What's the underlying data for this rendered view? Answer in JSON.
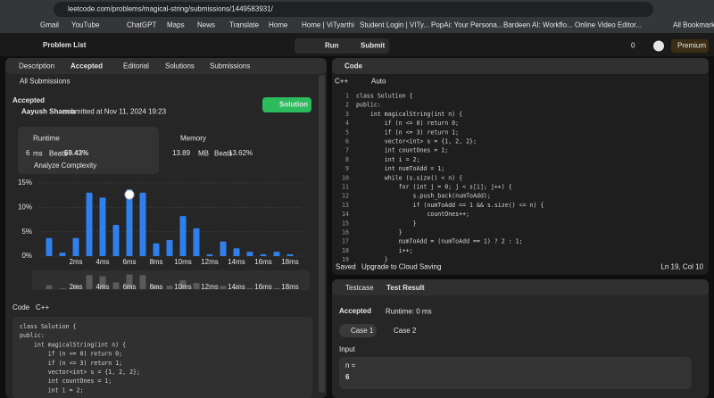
{
  "browser": {
    "url": "leetcode.com/problems/magical-string/submissions/1449583931/",
    "bookmarks": [
      "Gmail",
      "YouTube",
      "ChatGPT",
      "Maps",
      "News",
      "Translate",
      "Home",
      "Home | ViTyarthi",
      "Student Login | VITy...",
      "PopAi: Your Persona...",
      "Bardeen AI: Workflo...",
      "Online Video Editor..."
    ],
    "all_bookmarks": "All Bookmarks"
  },
  "nav": {
    "problem_list": "Problem List",
    "run": "Run",
    "submit": "Submit",
    "streak": "0",
    "premium": "Premium"
  },
  "left_tabs": [
    "Description",
    "Accepted",
    "Editorial",
    "Solutions",
    "Submissions"
  ],
  "submission": {
    "back": "All Submissions",
    "status": "Accepted",
    "user": "Aayush Sharma",
    "submitted": "submitted at Nov 11, 2024 19:23",
    "solution_button": "Solution",
    "runtime": {
      "label": "Runtime",
      "value": "6",
      "unit": "ms",
      "beats_label": "Beats",
      "beats": "59.43%",
      "analyze": "Analyze Complexity"
    },
    "memory": {
      "label": "Memory",
      "value": "13.89",
      "unit": "MB",
      "beats_label": "Beats",
      "beats": "13.62%"
    }
  },
  "chart_data": {
    "type": "bar",
    "color": "#2f80ed",
    "categories": [
      null,
      null,
      "2ms",
      null,
      "4ms",
      null,
      "6ms",
      null,
      "8ms",
      null,
      "10ms",
      null,
      "12ms",
      null,
      "14ms",
      null,
      "16ms",
      null,
      "18ms"
    ],
    "values": [
      3.7,
      0.7,
      3.7,
      13,
      12,
      6.4,
      13.7,
      13,
      2.6,
      3.3,
      8.2,
      5.7,
      0.4,
      3,
      1.6,
      0.9,
      0.4,
      0.9,
      0.4
    ],
    "ylim": [
      0,
      15
    ],
    "yticks": [
      {
        "value": 0,
        "label": "0%"
      },
      {
        "value": 5,
        "label": "5%"
      },
      {
        "value": 10,
        "label": "10%"
      },
      {
        "value": 15,
        "label": "15%"
      }
    ],
    "grid": true
  },
  "code_label": "Code",
  "code_lang": "C++",
  "left_code": [
    "class Solution {",
    "public:",
    "    int magicalString(int n) {",
    "        if (n <= 0) return 0;",
    "        if (n <= 3) return 1;",
    "        vector<int> s = {1, 2, 2};",
    "        int countOnes = 1;",
    "        int i = 2;"
  ],
  "editor": {
    "title": "Code",
    "lang": "C++",
    "mode": "Auto",
    "line_numbers": [
      1,
      2,
      3,
      4,
      5,
      6,
      7,
      8,
      9,
      10,
      11,
      12,
      13,
      14,
      15,
      16,
      17,
      18,
      19
    ],
    "lines": [
      "class Solution {",
      "public:",
      "    int magicalString(int n) {",
      "        if (n <= 0) return 0;",
      "        if (n <= 3) return 1;",
      "        vector<int> s = {1, 2, 2};",
      "        int countOnes = 1;",
      "        int i = 2;",
      "        int numToAdd = 1;",
      "        while (s.size() < n) {",
      "            for (int j = 0; j < s[i]; j++) {",
      "                s.push_back(numToAdd);",
      "                if (numToAdd == 1 && s.size() <= n) {",
      "                    countOnes++;",
      "                }",
      "            }",
      "            numToAdd = (numToAdd == 1) ? 2 : 1;",
      "            i++;",
      "        }"
    ],
    "saved": "Saved",
    "upgrade": "Upgrade to Cloud Saving",
    "cursor": "Ln 19, Col 10"
  },
  "result": {
    "tabs": [
      "Testcase",
      "Test Result"
    ],
    "status": "Accepted",
    "runtime": "Runtime: 0 ms",
    "cases": [
      "Case 1",
      "Case 2"
    ],
    "input_label": "Input",
    "param": "n =",
    "param_value": "6"
  }
}
